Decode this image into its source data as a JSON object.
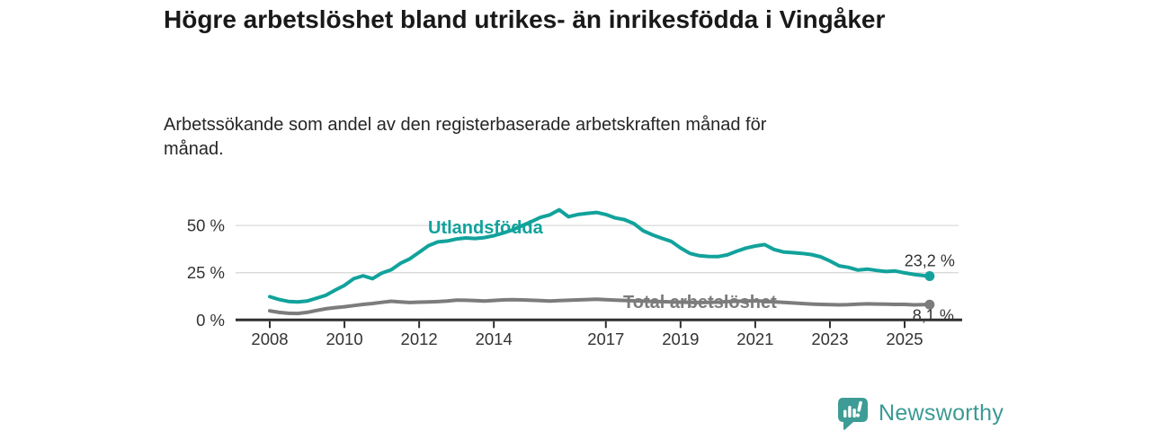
{
  "header": {
    "title": "Högre arbetslöshet bland utrikes- än inrikesfödda i Vingåker",
    "subtitle": "Arbetssökande som andel av den registerbaserade arbetskraften månad för månad."
  },
  "chart_data": {
    "type": "line",
    "title": "Högre arbetslöshet bland utrikes- än inrikesfödda i Vingåker",
    "xlabel": "",
    "ylabel": "",
    "grid": "horizontal",
    "x_axis": {
      "unit": "year",
      "range": [
        2008,
        2025.7
      ],
      "ticks": [
        {
          "value": 2008,
          "label": "2008"
        },
        {
          "value": 2010,
          "label": "2010"
        },
        {
          "value": 2012,
          "label": "2012"
        },
        {
          "value": 2014,
          "label": "2014"
        },
        {
          "value": 2017,
          "label": "2017"
        },
        {
          "value": 2019,
          "label": "2019"
        },
        {
          "value": 2021,
          "label": "2021"
        },
        {
          "value": 2023,
          "label": "2023"
        },
        {
          "value": 2025,
          "label": "2025"
        }
      ]
    },
    "y_axis": {
      "unit": "%",
      "range": [
        0,
        62
      ],
      "ticks": [
        {
          "value": 0,
          "label": "0 %"
        },
        {
          "value": 25,
          "label": "25 %"
        },
        {
          "value": 50,
          "label": "50 %"
        }
      ]
    },
    "series": [
      {
        "name": "Utlandsfödda",
        "color": "#12a29c",
        "end_label": "23,2 %",
        "end_value": 23.2,
        "points": [
          [
            2008.0,
            12.3
          ],
          [
            2008.25,
            10.8
          ],
          [
            2008.5,
            9.8
          ],
          [
            2008.75,
            9.5
          ],
          [
            2009.0,
            10.0
          ],
          [
            2009.25,
            11.5
          ],
          [
            2009.5,
            13.0
          ],
          [
            2009.75,
            15.8
          ],
          [
            2010.0,
            18.3
          ],
          [
            2010.25,
            21.8
          ],
          [
            2010.5,
            23.4
          ],
          [
            2010.75,
            21.8
          ],
          [
            2011.0,
            24.8
          ],
          [
            2011.25,
            26.5
          ],
          [
            2011.5,
            30.0
          ],
          [
            2011.75,
            32.3
          ],
          [
            2012.0,
            35.8
          ],
          [
            2012.25,
            39.3
          ],
          [
            2012.5,
            41.3
          ],
          [
            2012.75,
            41.8
          ],
          [
            2013.0,
            42.8
          ],
          [
            2013.25,
            43.4
          ],
          [
            2013.5,
            43.1
          ],
          [
            2013.75,
            43.6
          ],
          [
            2014.0,
            44.6
          ],
          [
            2014.25,
            46.0
          ],
          [
            2014.5,
            47.6
          ],
          [
            2014.75,
            49.8
          ],
          [
            2015.0,
            52.0
          ],
          [
            2015.25,
            54.3
          ],
          [
            2015.5,
            55.6
          ],
          [
            2015.75,
            58.3
          ],
          [
            2016.0,
            54.6
          ],
          [
            2016.25,
            55.8
          ],
          [
            2016.5,
            56.4
          ],
          [
            2016.75,
            56.9
          ],
          [
            2017.0,
            55.8
          ],
          [
            2017.25,
            54.0
          ],
          [
            2017.5,
            53.1
          ],
          [
            2017.75,
            51.0
          ],
          [
            2018.0,
            47.2
          ],
          [
            2018.25,
            45.0
          ],
          [
            2018.5,
            43.2
          ],
          [
            2018.75,
            41.6
          ],
          [
            2019.0,
            38.1
          ],
          [
            2019.25,
            35.2
          ],
          [
            2019.5,
            34.0
          ],
          [
            2019.75,
            33.6
          ],
          [
            2020.0,
            33.5
          ],
          [
            2020.25,
            34.4
          ],
          [
            2020.5,
            36.3
          ],
          [
            2020.75,
            38.0
          ],
          [
            2021.0,
            39.1
          ],
          [
            2021.25,
            39.9
          ],
          [
            2021.5,
            37.3
          ],
          [
            2021.75,
            36.0
          ],
          [
            2022.0,
            35.6
          ],
          [
            2022.25,
            35.2
          ],
          [
            2022.5,
            34.6
          ],
          [
            2022.75,
            33.4
          ],
          [
            2023.0,
            31.2
          ],
          [
            2023.25,
            28.6
          ],
          [
            2023.5,
            27.8
          ],
          [
            2023.75,
            26.4
          ],
          [
            2024.0,
            26.9
          ],
          [
            2024.25,
            26.2
          ],
          [
            2024.5,
            25.6
          ],
          [
            2024.75,
            25.9
          ],
          [
            2025.0,
            24.9
          ],
          [
            2025.25,
            24.1
          ],
          [
            2025.5,
            23.5
          ],
          [
            2025.67,
            23.2
          ]
        ]
      },
      {
        "name": "Total arbetslöshet",
        "color": "#7c7c7c",
        "end_label": "8,1 %",
        "end_value": 8.1,
        "points": [
          [
            2008.0,
            4.8
          ],
          [
            2008.25,
            4.0
          ],
          [
            2008.5,
            3.5
          ],
          [
            2008.75,
            3.4
          ],
          [
            2009.0,
            4.0
          ],
          [
            2009.25,
            5.0
          ],
          [
            2009.5,
            5.9
          ],
          [
            2009.75,
            6.5
          ],
          [
            2010.0,
            7.0
          ],
          [
            2010.25,
            7.6
          ],
          [
            2010.5,
            8.2
          ],
          [
            2010.75,
            8.7
          ],
          [
            2011.0,
            9.3
          ],
          [
            2011.25,
            9.9
          ],
          [
            2011.5,
            9.5
          ],
          [
            2011.75,
            9.2
          ],
          [
            2012.0,
            9.4
          ],
          [
            2012.25,
            9.5
          ],
          [
            2012.5,
            9.7
          ],
          [
            2012.75,
            10.0
          ],
          [
            2013.0,
            10.5
          ],
          [
            2013.25,
            10.4
          ],
          [
            2013.5,
            10.2
          ],
          [
            2013.75,
            10.0
          ],
          [
            2014.0,
            10.3
          ],
          [
            2014.25,
            10.6
          ],
          [
            2014.5,
            10.7
          ],
          [
            2014.75,
            10.6
          ],
          [
            2015.0,
            10.4
          ],
          [
            2015.25,
            10.2
          ],
          [
            2015.5,
            10.0
          ],
          [
            2015.75,
            10.2
          ],
          [
            2016.0,
            10.4
          ],
          [
            2016.25,
            10.6
          ],
          [
            2016.5,
            10.8
          ],
          [
            2016.75,
            11.0
          ],
          [
            2017.0,
            10.7
          ],
          [
            2017.25,
            10.5
          ],
          [
            2017.5,
            10.3
          ],
          [
            2017.75,
            10.1
          ],
          [
            2018.0,
            10.0
          ],
          [
            2018.25,
            9.8
          ],
          [
            2018.5,
            9.7
          ],
          [
            2018.75,
            9.5
          ],
          [
            2019.0,
            9.4
          ],
          [
            2019.25,
            9.3
          ],
          [
            2019.5,
            9.2
          ],
          [
            2019.75,
            9.3
          ],
          [
            2020.0,
            9.4
          ],
          [
            2020.25,
            9.7
          ],
          [
            2020.5,
            9.9
          ],
          [
            2020.75,
            10.0
          ],
          [
            2021.0,
            10.1
          ],
          [
            2021.25,
            9.9
          ],
          [
            2021.5,
            9.6
          ],
          [
            2021.75,
            9.3
          ],
          [
            2022.0,
            9.0
          ],
          [
            2022.25,
            8.7
          ],
          [
            2022.5,
            8.4
          ],
          [
            2022.75,
            8.2
          ],
          [
            2023.0,
            8.1
          ],
          [
            2023.25,
            8.0
          ],
          [
            2023.5,
            8.1
          ],
          [
            2023.75,
            8.3
          ],
          [
            2024.0,
            8.5
          ],
          [
            2024.25,
            8.4
          ],
          [
            2024.5,
            8.3
          ],
          [
            2024.75,
            8.2
          ],
          [
            2025.0,
            8.2
          ],
          [
            2025.25,
            8.0
          ],
          [
            2025.5,
            8.1
          ],
          [
            2025.67,
            8.1
          ]
        ]
      }
    ],
    "legend_position": "inline-labels",
    "colors": {
      "axis": "#2f2f2f",
      "gridline": "#dadada",
      "tick_label": "#333333",
      "value_label": "#333333"
    }
  },
  "footer": {
    "brand": "Newsworthy",
    "brand_color": "#3a9a94"
  }
}
